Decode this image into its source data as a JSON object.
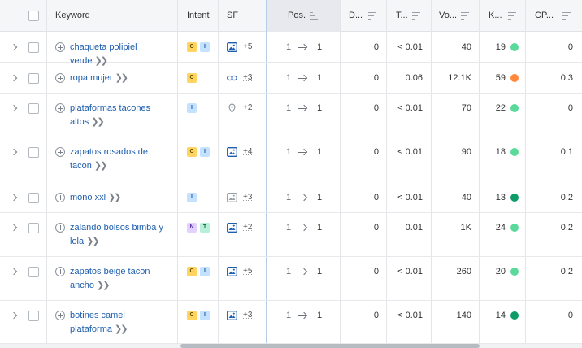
{
  "columns": {
    "keyword": "Keyword",
    "intent": "Intent",
    "sf": "SF",
    "position": "Pos.",
    "difference": "D...",
    "traffic": "T...",
    "volume": "Vo...",
    "kd": "K...",
    "cpc": "CP..."
  },
  "rows": [
    {
      "keyword_line1": "chaqueta polipiel verde",
      "keyword_line2": "",
      "intents": [
        "C",
        "I"
      ],
      "sf_icon": "image-icon",
      "sf_count": "+5",
      "pos_from": "1",
      "pos_to": "1",
      "diff": "0",
      "traffic": "< 0.01",
      "volume": "40",
      "kd": "19",
      "kd_color": "#5bd99a",
      "cpc": "0"
    },
    {
      "keyword_line1": "ropa mujer",
      "keyword_line2": "",
      "intents": [
        "C"
      ],
      "sf_icon": "link-icon",
      "sf_count": "+3",
      "pos_from": "1",
      "pos_to": "1",
      "diff": "0",
      "traffic": "0.06",
      "volume": "12.1K",
      "kd": "59",
      "kd_color": "#ff8a3d",
      "cpc": "0.3"
    },
    {
      "keyword_line1": "plataformas tacones",
      "keyword_line2": "altos",
      "intents": [
        "I"
      ],
      "sf_icon": "map-pin-icon",
      "sf_count": "+2",
      "pos_from": "1",
      "pos_to": "1",
      "diff": "0",
      "traffic": "< 0.01",
      "volume": "70",
      "kd": "22",
      "kd_color": "#5bd99a",
      "cpc": "0"
    },
    {
      "keyword_line1": "zapatos rosados de",
      "keyword_line2": "tacon",
      "intents": [
        "C",
        "I"
      ],
      "sf_icon": "image-icon",
      "sf_count": "+4",
      "pos_from": "1",
      "pos_to": "1",
      "diff": "0",
      "traffic": "< 0.01",
      "volume": "90",
      "kd": "18",
      "kd_color": "#5bd99a",
      "cpc": "0.1"
    },
    {
      "keyword_line1": "mono xxl",
      "keyword_line2": "",
      "intents": [
        "I"
      ],
      "sf_icon": "image-gray-icon",
      "sf_count": "+3",
      "pos_from": "1",
      "pos_to": "1",
      "diff": "0",
      "traffic": "< 0.01",
      "volume": "40",
      "kd": "13",
      "kd_color": "#0d9b68",
      "cpc": "0.2"
    },
    {
      "keyword_line1": "zalando bolsos bimba y",
      "keyword_line2": "lola",
      "intents": [
        "N",
        "T"
      ],
      "sf_icon": "image-icon",
      "sf_count": "+2",
      "pos_from": "1",
      "pos_to": "1",
      "diff": "0",
      "traffic": "0.01",
      "volume": "1K",
      "kd": "24",
      "kd_color": "#5bd99a",
      "cpc": "0.2"
    },
    {
      "keyword_line1": "zapatos beige tacon",
      "keyword_line2": "ancho",
      "intents": [
        "C",
        "I"
      ],
      "sf_icon": "image-icon",
      "sf_count": "+5",
      "pos_from": "1",
      "pos_to": "1",
      "diff": "0",
      "traffic": "< 0.01",
      "volume": "260",
      "kd": "20",
      "kd_color": "#5bd99a",
      "cpc": "0.2"
    },
    {
      "keyword_line1": "botines camel",
      "keyword_line2": "plataforma",
      "intents": [
        "C",
        "I"
      ],
      "sf_icon": "image-icon",
      "sf_count": "+3",
      "pos_from": "1",
      "pos_to": "1",
      "diff": "0",
      "traffic": "< 0.01",
      "volume": "140",
      "kd": "14",
      "kd_color": "#0d9b68",
      "cpc": "0"
    }
  ]
}
